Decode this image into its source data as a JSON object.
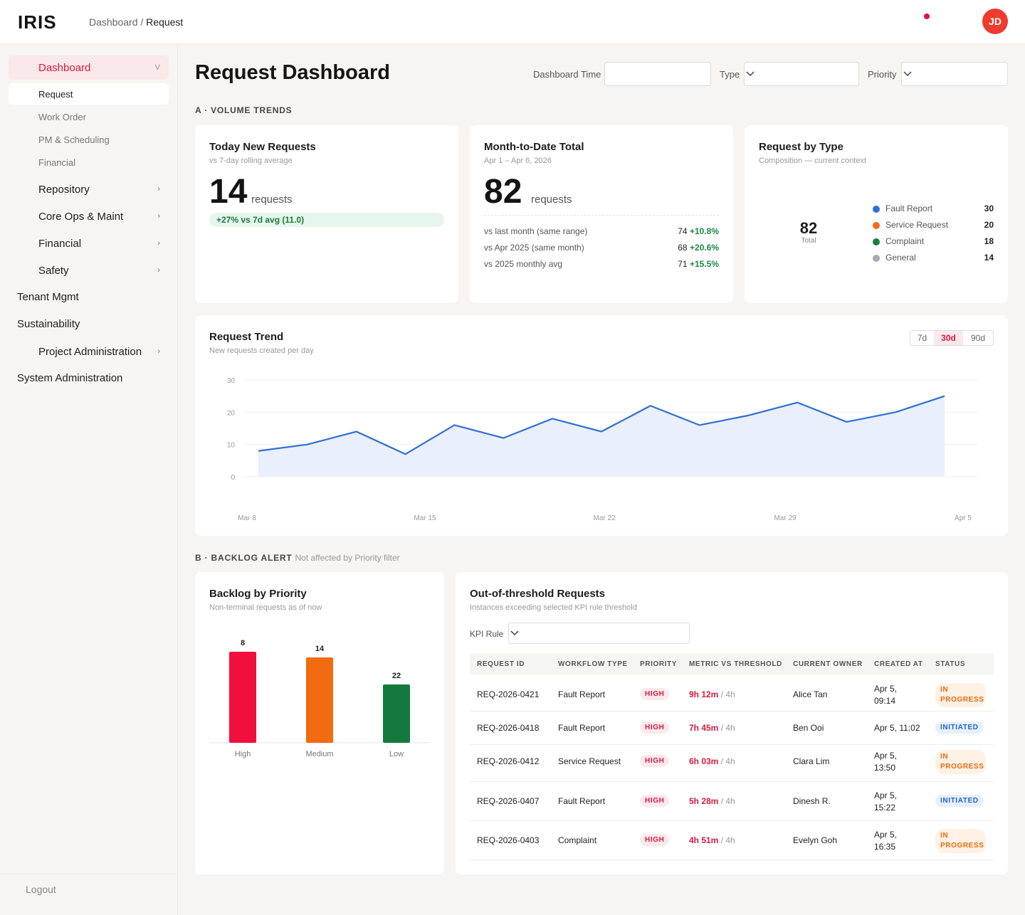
{
  "header": {
    "logo": "IRIS",
    "breadcrumb_root": "Dashboard",
    "breadcrumb_sep": " / ",
    "breadcrumb_current": "Request",
    "avatar_initials": "JD"
  },
  "sidebar": {
    "dashboard": "Dashboard",
    "dashboard_chev": "V",
    "sub_items": [
      "Request",
      "Work Order",
      "PM & Scheduling",
      "Financial"
    ],
    "groups": [
      "Repository",
      "Core Ops & Maint",
      "Financial",
      "Safety"
    ],
    "tenant": "Tenant Mgmt",
    "sustainability": "Sustainability",
    "project_admin": "Project Administration",
    "system_admin": "System Administration",
    "chev": "›",
    "logout": "Logout"
  },
  "page": {
    "title": "Request Dashboard",
    "filters": {
      "time_label": "Dashboard Time",
      "type_label": "Type",
      "priority_label": "Priority"
    },
    "section_a": "A · VOLUME TRENDS",
    "section_b": "B · BACKLOG ALERT",
    "section_b_note": "Not affected by Priority filter"
  },
  "today": {
    "title": "Today New Requests",
    "subtitle": "vs 7-day rolling average",
    "value": "14",
    "unit": "requests",
    "delta": "+27% vs 7d avg (11.0)"
  },
  "mtd": {
    "title": "Month-to-Date Total",
    "subtitle": "Apr 1 – Apr 6, 2026",
    "value": "82",
    "unit": "requests",
    "rows": [
      {
        "label": "vs last month (same range)",
        "value": "74",
        "pct": "+10.8%"
      },
      {
        "label": "vs Apr 2025 (same month)",
        "value": "68",
        "pct": "+20.6%"
      },
      {
        "label": "vs 2025 monthly avg",
        "value": "71",
        "pct": "+15.5%"
      }
    ]
  },
  "by_type": {
    "title": "Request by Type",
    "subtitle": "Composition — current context",
    "total": "82",
    "total_label": "Total",
    "items": [
      {
        "name": "Fault Report",
        "value": "30",
        "color": "#2f6fd6"
      },
      {
        "name": "Service Request",
        "value": "20",
        "color": "#f26b1d"
      },
      {
        "name": "Complaint",
        "value": "18",
        "color": "#16803c"
      },
      {
        "name": "General",
        "value": "14",
        "color": "#a9a9b8"
      }
    ]
  },
  "trend": {
    "title": "Request Trend",
    "subtitle": "New requests created per day",
    "ranges": [
      "7d",
      "30d",
      "90d"
    ],
    "active_range": "30d"
  },
  "chart_data": [
    {
      "type": "area",
      "title": "Request Trend",
      "x": [
        "Mar 8",
        "Mar 10",
        "Mar 12",
        "Mar 14",
        "Mar 16",
        "Mar 18",
        "Mar 20",
        "Mar 22",
        "Mar 24",
        "Mar 26",
        "Mar 28",
        "Mar 30",
        "Apr 1",
        "Apr 3",
        "Apr 5"
      ],
      "values": [
        8,
        10,
        14,
        7,
        16,
        12,
        18,
        14,
        22,
        16,
        19,
        23,
        17,
        20,
        25
      ],
      "x_ticks": [
        "Mar 8",
        "Mar 15",
        "Mar 22",
        "Mar 29",
        "Apr 5"
      ],
      "y_ticks": [
        0,
        10,
        20,
        30
      ],
      "ylim": [
        0,
        30
      ],
      "color": "#2f6fd6",
      "fill": "#e9effb"
    },
    {
      "type": "bar",
      "title": "Backlog by Priority",
      "categories": [
        "High",
        "Medium",
        "Low"
      ],
      "values": [
        8,
        14,
        22
      ],
      "colors": [
        "#f1103d",
        "#f26b10",
        "#137a3e"
      ]
    }
  ],
  "backlog": {
    "title": "Backlog by Priority",
    "subtitle": "Non-terminal requests as of now"
  },
  "threshold": {
    "title": "Out-of-threshold Requests",
    "subtitle": "Instances exceeding selected KPI rule threshold",
    "kpi_label": "KPI Rule",
    "columns": [
      "REQUEST ID",
      "WORKFLOW TYPE",
      "PRIORITY",
      "METRIC VS THRESHOLD",
      "CURRENT OWNER",
      "CREATED AT",
      "STATUS"
    ],
    "rows": [
      {
        "id": "REQ-2026-0421",
        "type": "Fault Report",
        "priority": "HIGH",
        "metric": "9h 12m",
        "threshold": "/ 4h",
        "owner": "Alice Tan",
        "created": "Apr 5, 09:14",
        "created_l1": "Apr 5,",
        "created_l2": "09:14",
        "status": "IN PROGRESS",
        "status_l1": "IN",
        "status_l2": "PROGRESS",
        "status_kind": "inprog"
      },
      {
        "id": "REQ-2026-0418",
        "type": "Fault Report",
        "priority": "HIGH",
        "metric": "7h 45m",
        "threshold": "/ 4h",
        "owner": "Ben Ooi",
        "created": "Apr 5, 11:02",
        "status": "INITIATED",
        "status_kind": "init"
      },
      {
        "id": "REQ-2026-0412",
        "type": "Service Request",
        "priority": "HIGH",
        "metric": "6h 03m",
        "threshold": "/ 4h",
        "owner": "Clara Lim",
        "created": "Apr 5, 13:50",
        "created_l1": "Apr 5,",
        "created_l2": "13:50",
        "status": "IN PROGRESS",
        "status_l1": "IN",
        "status_l2": "PROGRESS",
        "status_kind": "inprog"
      },
      {
        "id": "REQ-2026-0407",
        "type": "Fault Report",
        "priority": "HIGH",
        "metric": "5h 28m",
        "threshold": "/ 4h",
        "owner": "Dinesh R.",
        "created": "Apr 5, 15:22",
        "created_l1": "Apr 5,",
        "created_l2": "15:22",
        "status": "INITIATED",
        "status_kind": "init"
      },
      {
        "id": "REQ-2026-0403",
        "type": "Complaint",
        "priority": "HIGH",
        "metric": "4h 51m",
        "threshold": "/ 4h",
        "owner": "Evelyn Goh",
        "created": "Apr 5, 16:35",
        "created_l1": "Apr 5,",
        "created_l2": "16:35",
        "status": "IN PROGRESS",
        "status_l1": "IN",
        "status_l2": "PROGRESS",
        "status_kind": "inprog"
      }
    ]
  }
}
